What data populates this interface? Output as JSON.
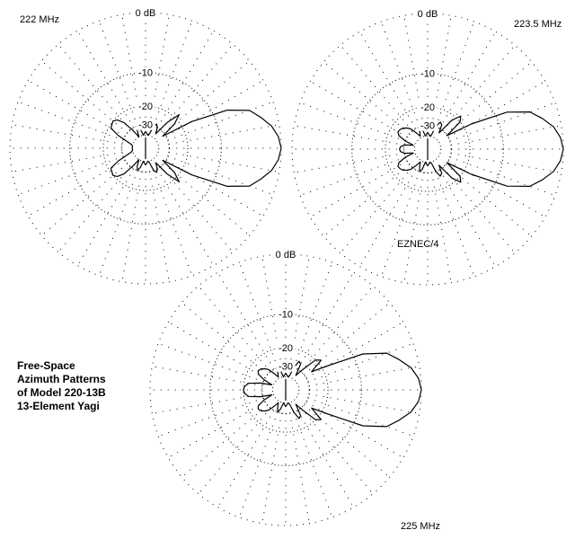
{
  "chart_data": [
    {
      "type": "polar",
      "title": "222 MHz",
      "scale": "ARRL log",
      "ring_labels": [
        "0 dB",
        "-10",
        "-20",
        "-30"
      ],
      "rings_db": [
        0,
        -10,
        -20,
        -30,
        -40
      ],
      "grid": true,
      "azimuth_deg": [
        0,
        5,
        10,
        15,
        20,
        25,
        30,
        35,
        40,
        45,
        50,
        55,
        60,
        65,
        70,
        75,
        80,
        85,
        90,
        95,
        100,
        105,
        110,
        115,
        120,
        125,
        130,
        135,
        140,
        145,
        150,
        155,
        160,
        165,
        170,
        175,
        180
      ],
      "gain_db": [
        0,
        -0.3,
        -1,
        -2.2,
        -3.5,
        -7,
        -16,
        -32,
        -22,
        -18,
        -24,
        -35,
        -30,
        -28,
        -30,
        -38,
        -40,
        -38,
        -36,
        -38,
        -40,
        -33,
        -30,
        -33,
        -40,
        -32,
        -24,
        -21,
        -20,
        -20.5,
        -21,
        -26,
        -33,
        -38,
        -40,
        -40,
        -40
      ],
      "symmetric": true
    },
    {
      "type": "polar",
      "title": "223.5 MHz",
      "scale": "ARRL log",
      "ring_labels": [
        "0 dB",
        "-10",
        "-20",
        "-30"
      ],
      "rings_db": [
        0,
        -10,
        -20,
        -30,
        -40
      ],
      "grid": true,
      "azimuth_deg": [
        0,
        5,
        10,
        15,
        20,
        25,
        30,
        35,
        40,
        45,
        50,
        55,
        60,
        65,
        70,
        75,
        80,
        85,
        90,
        95,
        100,
        105,
        110,
        115,
        120,
        125,
        130,
        135,
        140,
        145,
        150,
        155,
        160,
        165,
        170,
        175,
        180
      ],
      "gain_db": [
        0,
        -0.3,
        -1,
        -2.3,
        -3.8,
        -7.5,
        -17,
        -30,
        -20,
        -18.3,
        -22,
        -33,
        -27,
        -26,
        -30,
        -38,
        -40,
        -38,
        -36,
        -38,
        -40,
        -32,
        -30,
        -34,
        -38,
        -33,
        -28,
        -26,
        -24.5,
        -23.8,
        -23.6,
        -25,
        -30,
        -38,
        -30,
        -27.5,
        -27
      ],
      "symmetric": true
    },
    {
      "type": "polar",
      "title": "225 MHz",
      "scale": "ARRL log",
      "ring_labels": [
        "0 dB",
        "-10",
        "-20",
        "-30"
      ],
      "rings_db": [
        0,
        -10,
        -20,
        -30,
        -40
      ],
      "grid": true,
      "azimuth_deg": [
        0,
        5,
        10,
        15,
        20,
        25,
        30,
        35,
        40,
        45,
        50,
        55,
        60,
        65,
        70,
        75,
        80,
        85,
        90,
        95,
        100,
        105,
        110,
        115,
        120,
        125,
        130,
        135,
        140,
        145,
        150,
        155,
        160,
        165,
        170,
        175,
        180
      ],
      "gain_db": [
        0,
        -0.3,
        -1.1,
        -2.5,
        -4,
        -8,
        -18,
        -25,
        -18.5,
        -20,
        -28,
        -35,
        -26,
        -25,
        -30,
        -38,
        -40,
        -38,
        -36,
        -38,
        -40,
        -33,
        -30,
        -34,
        -38,
        -33,
        -28,
        -26,
        -24.5,
        -24,
        -25,
        -30,
        -38,
        -28,
        -22,
        -20.5,
        -20
      ],
      "symmetric": true
    }
  ],
  "watermark": "EZNEC/4",
  "caption": [
    "Free-Space",
    "Azimuth Patterns",
    "of Model 220-13B",
    "13-Element Yagi"
  ]
}
